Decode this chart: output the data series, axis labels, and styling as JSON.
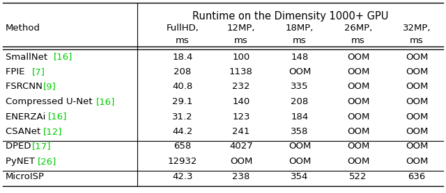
{
  "title": "Runtime on the Dimensity 1000+ GPU",
  "col_headers_1": [
    "FullHD,",
    "12MP,",
    "18MP,",
    "26MP,",
    "32MP,"
  ],
  "col_headers_2": [
    "ms",
    "ms",
    "ms",
    "ms",
    "ms"
  ],
  "rows": [
    {
      "base": "SmallNet ",
      "ref": "[16]",
      "values": [
        "18.4",
        "100",
        "148",
        "OOM",
        "OOM"
      ]
    },
    {
      "base": "FPIE ",
      "ref": "[7]",
      "values": [
        "208",
        "1138",
        "OOM",
        "OOM",
        "OOM"
      ]
    },
    {
      "base": "FSRCNN ",
      "ref": "[9]",
      "values": [
        "40.8",
        "232",
        "335",
        "OOM",
        "OOM"
      ]
    },
    {
      "base": "Compressed U-Net ",
      "ref": "[16]",
      "values": [
        "29.1",
        "140",
        "208",
        "OOM",
        "OOM"
      ]
    },
    {
      "base": "ENERZAi ",
      "ref": "[16]",
      "values": [
        "31.2",
        "123",
        "184",
        "OOM",
        "OOM"
      ]
    },
    {
      "base": "CSANet ",
      "ref": "[12]",
      "values": [
        "44.2",
        "241",
        "358",
        "OOM",
        "OOM"
      ]
    },
    {
      "base": "DPED ",
      "ref": "[17]",
      "values": [
        "658",
        "4027",
        "OOM",
        "OOM",
        "OOM"
      ]
    },
    {
      "base": "PyNET ",
      "ref": "[26]",
      "values": [
        "12932",
        "OOM",
        "OOM",
        "OOM",
        "OOM"
      ]
    },
    {
      "base": "MicroISP",
      "ref": "",
      "values": [
        "42.3",
        "238",
        "354",
        "522",
        "636"
      ]
    }
  ],
  "group_sep_after": [
    5,
    7
  ],
  "bg_color": "#ffffff",
  "text_color": "#000000",
  "ref_color": "#00cc00",
  "fontsize": 9.5,
  "title_fontsize": 10.5,
  "method_header": "Method"
}
